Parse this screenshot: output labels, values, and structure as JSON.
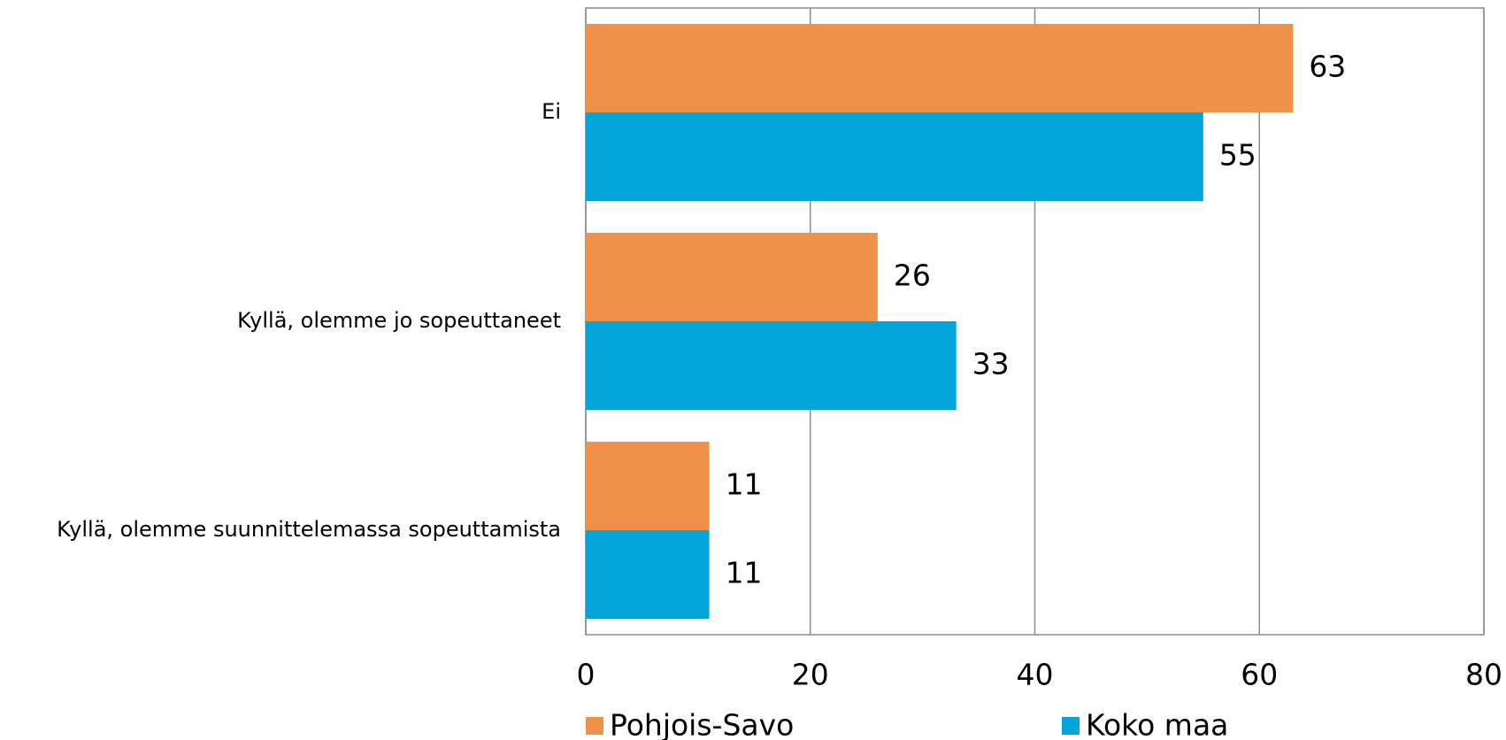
{
  "chart_data": {
    "type": "hbar",
    "categories": [
      "Ei",
      "Kyllä, olemme jo sopeuttaneet",
      "Kyllä, olemme suunnittelemassa sopeuttamista"
    ],
    "series": [
      {
        "name": "Pohjois-Savo",
        "color": "#f0914a",
        "values": [
          63,
          26,
          11
        ]
      },
      {
        "name": "Koko maa",
        "color": "#03a4da",
        "values": [
          55,
          33,
          11
        ]
      }
    ],
    "xlim": [
      0,
      80
    ],
    "xticks": [
      0,
      20,
      40,
      60,
      80
    ],
    "grid": true,
    "legend": "bottom"
  }
}
